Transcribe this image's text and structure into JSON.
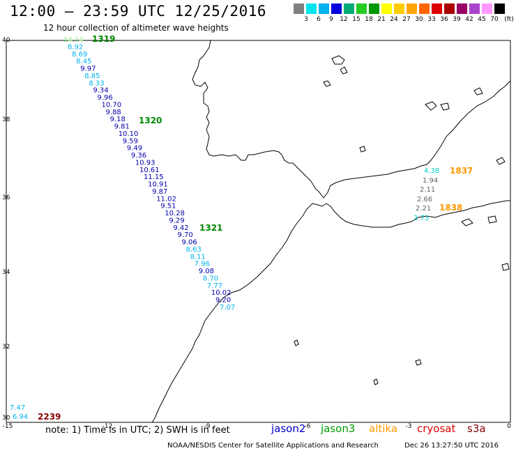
{
  "header": {
    "title": "12:00 – 23:59 UTC 12/25/2016",
    "subtitle": "12 hour collection of altimeter wave heights"
  },
  "scale": {
    "colors": [
      "#808080",
      "#00e5ee",
      "#00b2ee",
      "#0000dd",
      "#00aa77",
      "#22cc22",
      "#009900",
      "#ffff00",
      "#ffcc00",
      "#ffa500",
      "#ff6600",
      "#dd0000",
      "#aa0000",
      "#990066",
      "#aa44cc",
      "#ff99ff",
      "#000000"
    ],
    "labels": [
      "3",
      "6",
      "9",
      "12",
      "15",
      "18",
      "21",
      "24",
      "27",
      "30",
      "33",
      "36",
      "39",
      "42",
      "45",
      "70"
    ],
    "unit": "(ft)"
  },
  "axes": {
    "lat_labels": [
      "40",
      "38",
      "36",
      "34",
      "32",
      "30"
    ],
    "lon_labels": [
      "-15",
      "-12",
      "-9",
      "-6",
      "-3",
      "0"
    ]
  },
  "passes": [
    {
      "label": "1319",
      "color": "#008800"
    },
    {
      "label": "1320",
      "color": "#008800"
    },
    {
      "label": "1321",
      "color": "#008800"
    },
    {
      "label": "1837",
      "color": "#ff9900"
    },
    {
      "label": "1838",
      "color": "#ff9900"
    },
    {
      "label": "2239",
      "color": "#880000"
    }
  ],
  "track_values": [
    {
      "v": "14.14",
      "c": "#88ee88"
    },
    {
      "v": "8.92",
      "c": "#00b2ee"
    },
    {
      "v": "8.69",
      "c": "#00b2ee"
    },
    {
      "v": "8.45",
      "c": "#00b2ee"
    },
    {
      "v": "9.97",
      "c": "#0000aa"
    },
    {
      "v": "8.85",
      "c": "#00b2ee"
    },
    {
      "v": "8.33",
      "c": "#00b2ee"
    },
    {
      "v": "9.34",
      "c": "#0000aa"
    },
    {
      "v": "9.96",
      "c": "#0000aa"
    },
    {
      "v": "10.70",
      "c": "#0000aa"
    },
    {
      "v": "9.88",
      "c": "#0000aa"
    },
    {
      "v": "9.18",
      "c": "#0000aa"
    },
    {
      "v": "9.81",
      "c": "#0000aa"
    },
    {
      "v": "10.10",
      "c": "#0000aa"
    },
    {
      "v": "9.59",
      "c": "#0000aa"
    },
    {
      "v": "9.49",
      "c": "#0000aa"
    },
    {
      "v": "9.36",
      "c": "#0000aa"
    },
    {
      "v": "10.93",
      "c": "#0000aa"
    },
    {
      "v": "10.61",
      "c": "#0000aa"
    },
    {
      "v": "11.15",
      "c": "#0000aa"
    },
    {
      "v": "10.91",
      "c": "#0000aa"
    },
    {
      "v": "9.87",
      "c": "#0000aa"
    },
    {
      "v": "11.02",
      "c": "#0000aa"
    },
    {
      "v": "9.51",
      "c": "#0000aa"
    },
    {
      "v": "10.28",
      "c": "#0000aa"
    },
    {
      "v": "9.29",
      "c": "#0000aa"
    },
    {
      "v": "9.42",
      "c": "#0000aa"
    },
    {
      "v": "9.70",
      "c": "#0000aa"
    },
    {
      "v": "9.06",
      "c": "#0000aa"
    },
    {
      "v": "8.63",
      "c": "#00b2ee"
    },
    {
      "v": "8.11",
      "c": "#00b2ee"
    },
    {
      "v": "7.96",
      "c": "#00b2ee"
    },
    {
      "v": "9.08",
      "c": "#0000aa"
    },
    {
      "v": "8.70",
      "c": "#00b2ee"
    },
    {
      "v": "7.77",
      "c": "#00b2ee"
    },
    {
      "v": "10.02",
      "c": "#0000aa"
    },
    {
      "v": "9.20",
      "c": "#0000aa"
    },
    {
      "v": "7.07",
      "c": "#00b2ee"
    }
  ],
  "med_values": [
    {
      "v": "4.38",
      "c": "#00cccc"
    },
    {
      "v": "1.94",
      "c": "#666666"
    },
    {
      "v": "2.11",
      "c": "#666666"
    },
    {
      "v": "2.66",
      "c": "#666666"
    },
    {
      "v": "2.21",
      "c": "#666666"
    },
    {
      "v": "3.73",
      "c": "#00cccc"
    }
  ],
  "sw_values": [
    {
      "v": "7.47",
      "c": "#00b2ee"
    },
    {
      "v": "6.94",
      "c": "#00b2ee"
    }
  ],
  "footer": {
    "note": "note: 1) Time is in UTC; 2) SWH is in feet",
    "satellites": [
      {
        "name": "jason2",
        "color": "#0000cc"
      },
      {
        "name": "jason3",
        "color": "#009900"
      },
      {
        "name": "altika",
        "color": "#ff9900"
      },
      {
        "name": "cryosat",
        "color": "#dd0000"
      },
      {
        "name": "s3a",
        "color": "#880000"
      }
    ],
    "credit": "NOAA/NESDIS Center for Satellite Applications and Research",
    "timestamp": "Dec 26 13:27:50 UTC 2016"
  }
}
